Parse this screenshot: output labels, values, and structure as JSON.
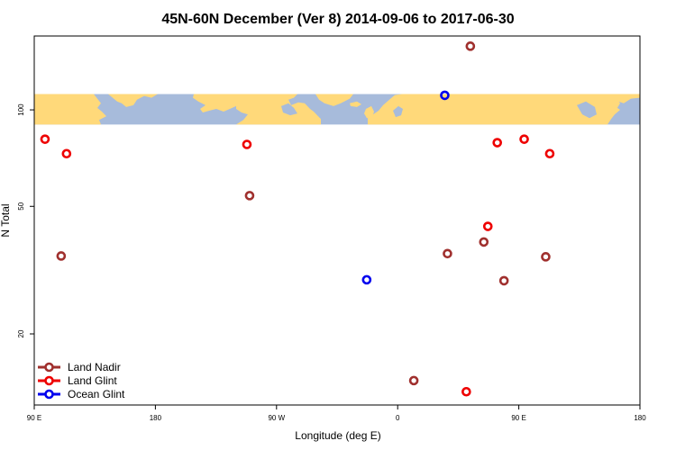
{
  "chart_data": {
    "type": "scatter",
    "title": "45N-60N December (Ver 8)   2014-09-06 to 2017-06-30",
    "xlabel": "Longitude (deg E)",
    "ylabel": "N Total",
    "x_ticks": [
      {
        "value": 90,
        "label": "90 E"
      },
      {
        "value": 180,
        "label": "180"
      },
      {
        "value": 270,
        "label": "90 W"
      },
      {
        "value": 360,
        "label": "0"
      },
      {
        "value": 450,
        "label": "90 E"
      },
      {
        "value": 540,
        "label": "180"
      }
    ],
    "y_ticks": [
      {
        "value": 20,
        "label": "20"
      },
      {
        "value": 50,
        "label": "50"
      },
      {
        "value": 100,
        "label": "100"
      }
    ],
    "xlim": [
      90,
      540
    ],
    "ylim": [
      12,
      170
    ],
    "y_scale": "log",
    "grid": false,
    "legend_position": "bottom-left",
    "map_strip": {
      "description": "world map band spanning longitudes",
      "y_range": [
        90,
        112
      ],
      "land_color": "#ffd97a",
      "ocean_color": "#a7bbdb"
    },
    "series": [
      {
        "name": "Land Nadir",
        "color": "#a0302e",
        "points": [
          {
            "x": 110,
            "y": 35
          },
          {
            "x": 250,
            "y": 54
          },
          {
            "x": 397,
            "y": 35.6
          },
          {
            "x": 414,
            "y": 158
          },
          {
            "x": 424,
            "y": 38.7
          },
          {
            "x": 439,
            "y": 29.3
          },
          {
            "x": 470,
            "y": 34.8
          },
          {
            "x": 372,
            "y": 14.3
          }
        ]
      },
      {
        "name": "Land Glint",
        "color": "#ee0000",
        "points": [
          {
            "x": 98,
            "y": 81
          },
          {
            "x": 114,
            "y": 73
          },
          {
            "x": 248,
            "y": 78
          },
          {
            "x": 411,
            "y": 13.2
          },
          {
            "x": 427,
            "y": 43.3
          },
          {
            "x": 434,
            "y": 79
          },
          {
            "x": 454,
            "y": 81
          },
          {
            "x": 473,
            "y": 73
          }
        ]
      },
      {
        "name": "Ocean Glint",
        "color": "#0000ee",
        "points": [
          {
            "x": 395,
            "y": 111
          },
          {
            "x": 337,
            "y": 29.5
          }
        ]
      }
    ]
  }
}
